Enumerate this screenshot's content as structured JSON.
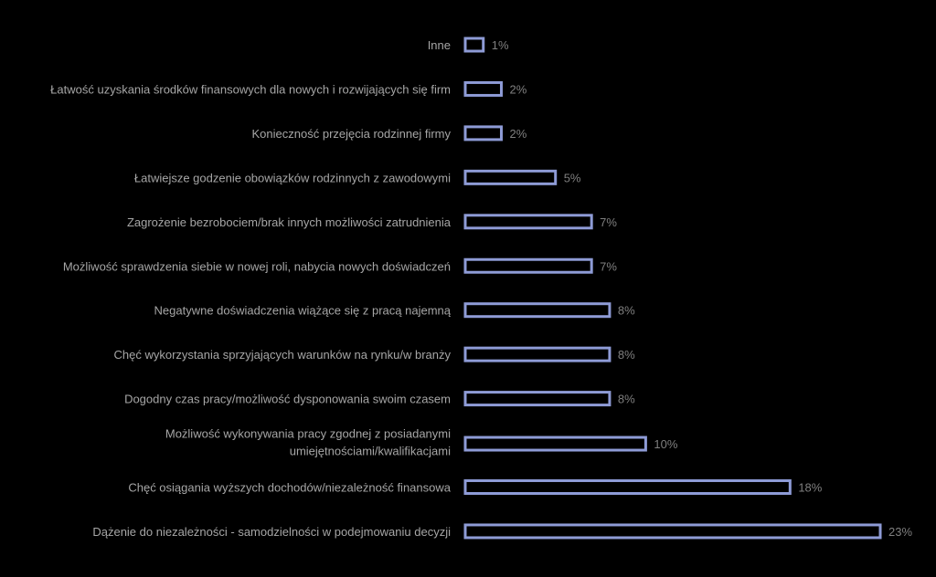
{
  "chart_data": {
    "type": "bar",
    "orientation": "horizontal",
    "categories": [
      "Inne",
      "Łatwość uzyskania środków finansowych dla nowych i rozwijających się firm",
      "Konieczność przejęcia rodzinnej firmy",
      "Łatwiejsze godzenie obowiązków rodzinnych z zawodowymi",
      "Zagrożenie bezrobociem/brak innych możliwości zatrudnienia",
      "Możliwość sprawdzenia siebie w nowej roli, nabycia nowych doświadczeń",
      "Negatywne doświadczenia wiążące się z pracą najemną",
      "Chęć wykorzystania sprzyjających warunków na rynku/w branży",
      "Dogodny czas pracy/możliwość dysponowania swoim czasem",
      "Możliwość wykonywania pracy zgodnej z posiadanymi umiejętnościami/kwalifikacjami",
      "Chęć osiągania wyższych dochodów/niezależność finansowa",
      "Dążenie do niezależności - samodzielności w podejmowaniu decyzji"
    ],
    "values": [
      1,
      2,
      2,
      5,
      7,
      7,
      8,
      8,
      8,
      10,
      18,
      23
    ],
    "value_labels": [
      "1%",
      "2%",
      "2%",
      "5%",
      "7%",
      "7%",
      "8%",
      "8%",
      "8%",
      "10%",
      "18%",
      "23%"
    ],
    "xlim": [
      0,
      23
    ],
    "title": "",
    "xlabel": "",
    "ylabel": "",
    "grid": false,
    "legend": "none",
    "colors": {
      "background": "#000000",
      "bar_outline": "#8e9bd6",
      "bar_fill": "#000000",
      "category_text": "#a6a6a6",
      "value_text": "#7f7f7f"
    }
  }
}
